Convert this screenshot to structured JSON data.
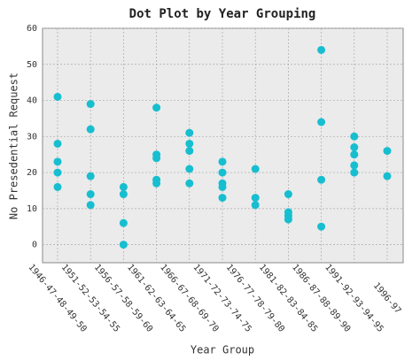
{
  "chart_data": {
    "type": "dot",
    "title": "Dot Plot by Year Grouping",
    "x_label": "Year Group",
    "y_label": "No Presedential Request",
    "categories": [
      "1946-47-48-49-50",
      "1951-52-53-54-55",
      "1956-57-58-59-60",
      "1961-62-63-64-65",
      "1966-67-68-69-70",
      "1971-72-73-74-75",
      "1976-77-78-79-80",
      "1981-82-83-84-85",
      "1986-87-88-89-90",
      "1991-92-93-94-95",
      "1996-97"
    ],
    "values": [
      [
        41,
        28,
        23,
        20,
        16
      ],
      [
        39,
        32,
        19,
        14,
        11
      ],
      [
        16,
        14,
        6,
        0
      ],
      [
        38,
        25,
        24,
        18,
        17
      ],
      [
        31,
        28,
        26,
        21,
        17
      ],
      [
        23,
        20,
        17,
        16,
        13
      ],
      [
        21,
        13,
        11
      ],
      [
        14,
        9,
        8,
        7
      ],
      [
        54,
        34,
        18,
        5
      ],
      [
        30,
        27,
        25,
        22,
        20
      ],
      [
        26,
        19
      ]
    ],
    "color": "#17becf",
    "ylim": [
      -5,
      60
    ],
    "yticks": [
      0,
      10,
      20,
      30,
      40,
      50,
      60
    ],
    "grid": true
  }
}
